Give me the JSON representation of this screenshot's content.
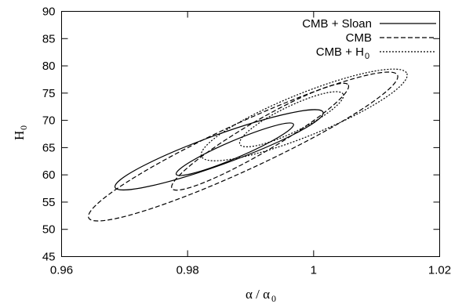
{
  "chart_data": {
    "type": "line",
    "title": "",
    "xlabel": "α / α",
    "xlabel_sub": "0",
    "ylabel": "H",
    "ylabel_sub": "0",
    "xlim": [
      0.96,
      1.02
    ],
    "ylim": [
      45,
      90
    ],
    "xticks": [
      0.96,
      0.98,
      1,
      1.02
    ],
    "xtick_labels": [
      "0.96",
      "0.98",
      "1",
      "1.02"
    ],
    "yticks": [
      45,
      50,
      55,
      60,
      65,
      70,
      75,
      80,
      85,
      90
    ],
    "ytick_labels": [
      "45",
      "50",
      "55",
      "60",
      "65",
      "70",
      "75",
      "80",
      "85",
      "90"
    ],
    "grid": false,
    "legend_position": "top-right",
    "series": [
      {
        "name": "CMB + Sloan",
        "legend_text": "CMB + Sloan",
        "legend_sub": "",
        "style": "solid",
        "contours": [
          {
            "level": "inner",
            "center": [
              0.9875,
              64.7
            ],
            "semi_major": [
              0.0093,
              4.6
            ],
            "semi_minor_y": 1.7
          },
          {
            "level": "outer",
            "center": [
              0.985,
              64.6
            ],
            "semi_major": [
              0.0165,
              6.9
            ],
            "semi_minor_y": 2.9
          }
        ]
      },
      {
        "name": "CMB",
        "legend_text": "CMB",
        "legend_sub": "",
        "style": "dashed",
        "contours": [
          {
            "level": "inner",
            "center": [
              0.9915,
              67.0
            ],
            "semi_major": [
              0.014,
              9.5
            ],
            "semi_minor_y": 3.3
          },
          {
            "level": "outer",
            "center": [
              0.9888,
              65.2
            ],
            "semi_major": [
              0.0245,
              13.1
            ],
            "semi_minor_y": 4.7
          }
        ]
      },
      {
        "name": "CMB + H0",
        "legend_text": "CMB + H",
        "legend_sub": "0",
        "style": "dotted",
        "contours": [
          {
            "level": "inner",
            "center": [
              0.9965,
              70.2
            ],
            "semi_major": [
              0.0082,
              4.6
            ],
            "semi_minor_y": 2.6
          },
          {
            "level": "outer",
            "center": [
              0.9985,
              71.0
            ],
            "semi_major": [
              0.0163,
              7.6
            ],
            "semi_minor_y": 4.2
          }
        ]
      }
    ]
  }
}
